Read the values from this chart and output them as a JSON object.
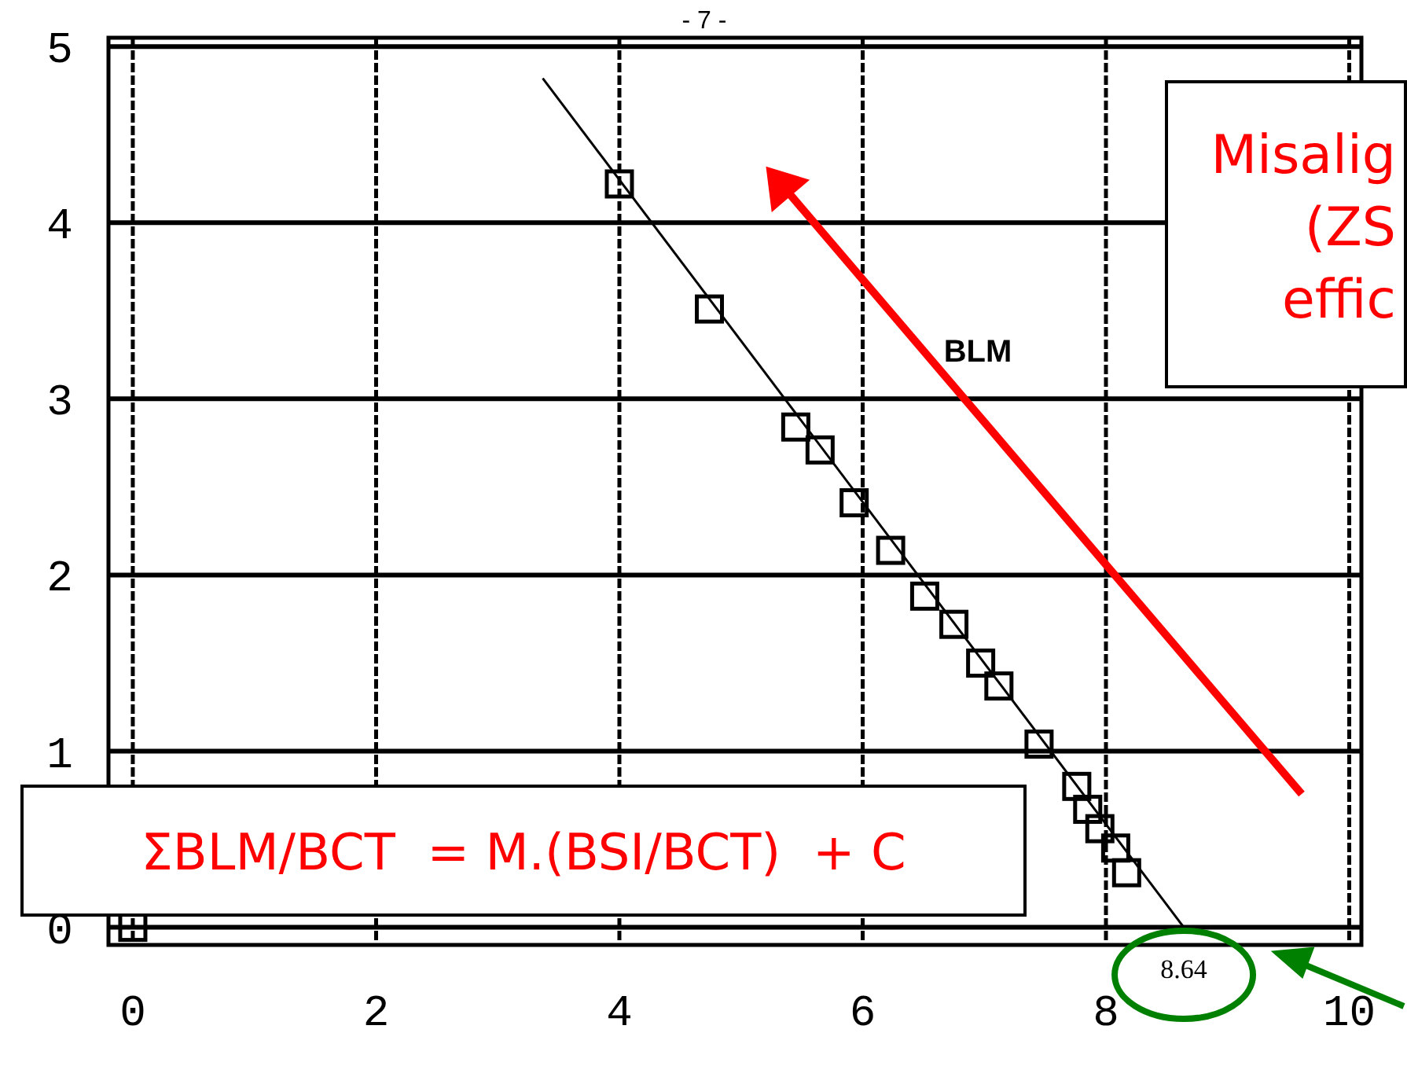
{
  "chart_data": {
    "type": "scatter",
    "xlim": [
      -0.2,
      10.1
    ],
    "ylim": [
      -0.1,
      5.05
    ],
    "xticks": [
      0,
      2,
      4,
      6,
      8,
      10
    ],
    "yticks": [
      0,
      1,
      2,
      3,
      4,
      5
    ],
    "grid": true,
    "series": [
      {
        "color": "#000000",
        "marker": "square",
        "x": [
          0,
          4.0,
          4.74,
          5.45,
          5.65,
          5.93,
          6.23,
          6.51,
          6.75,
          6.97,
          7.12,
          7.45,
          7.76,
          7.85,
          7.95,
          8.08,
          8.17
        ],
        "values": [
          0,
          4.22,
          3.51,
          2.84,
          2.71,
          2.41,
          2.14,
          1.88,
          1.72,
          1.5,
          1.37,
          1.04,
          0.8,
          0.67,
          0.56,
          0.45,
          0.31
        ]
      },
      {
        "type": "line",
        "color": "#000000",
        "x": [
          3.37,
          8.64
        ],
        "values": [
          4.82,
          0
        ]
      }
    ],
    "annotations": [
      "- 7 -",
      "BLM",
      "Misalig\n(ZS\neffic",
      "ΣBLM/BCT  = M.(BSI/BCT)  + C",
      {
        "text": "8.64",
        "x": 8.64,
        "y": 0
      }
    ]
  }
}
